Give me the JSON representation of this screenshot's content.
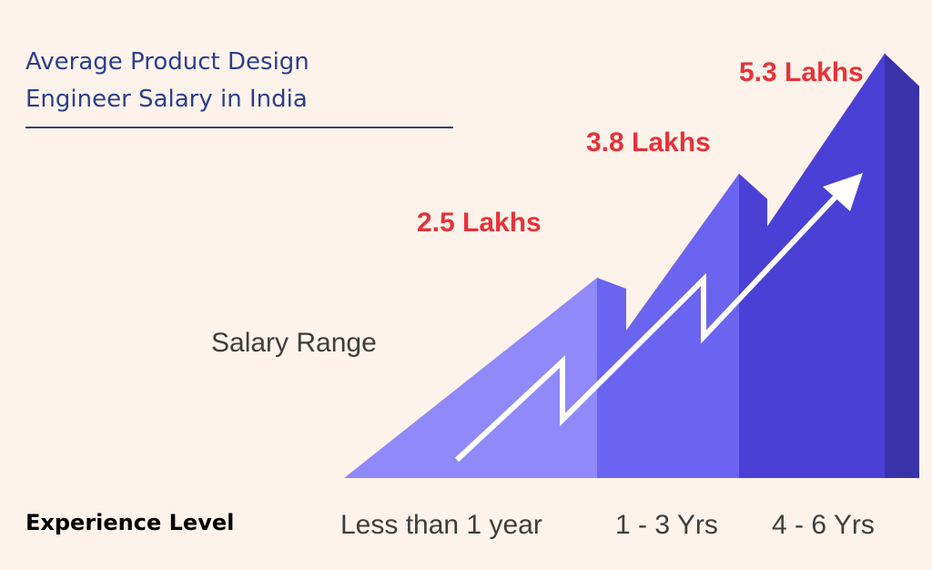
{
  "header": {
    "title_line1": "Average Product Design",
    "title_line2": "Engineer Salary in India"
  },
  "labels": {
    "salary_range": "Salary Range",
    "experience_level": "Experience Level"
  },
  "colors": {
    "background": "#fdf3ea",
    "title": "#2b3f8c",
    "value_label": "#e5323a",
    "step1": "#8f89f9",
    "step2": "#6a64f0",
    "step3": "#4a40d6",
    "step3_side": "#3a32a8",
    "arrow": "#ffffff"
  },
  "chart_data": {
    "type": "area",
    "title": "Average Product Design Engineer Salary in India",
    "xlabel": "Experience Level",
    "ylabel": "Salary Range",
    "categories": [
      "Less than 1 year",
      "1 - 3 Yrs",
      "4 - 6 Yrs"
    ],
    "values": [
      2.5,
      3.8,
      5.3
    ],
    "value_labels": [
      "2.5 Lakhs",
      "3.8 Lakhs",
      "5.3 Lakhs"
    ],
    "unit": "Lakhs",
    "grid": false
  }
}
